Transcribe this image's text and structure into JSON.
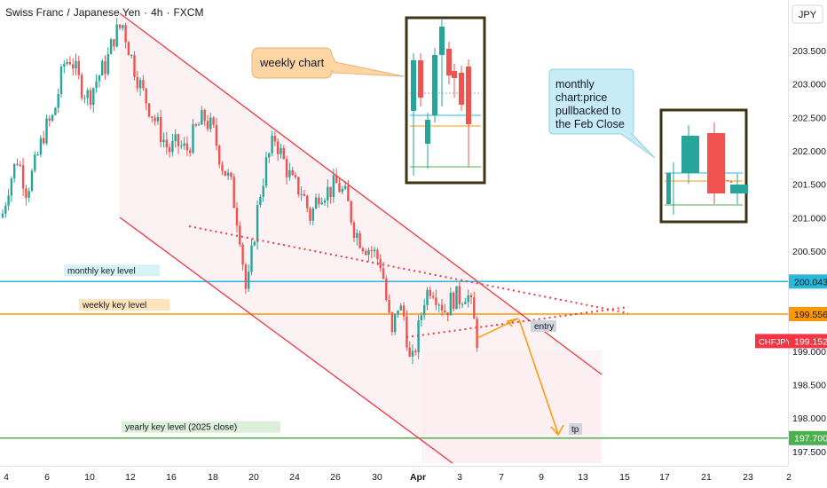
{
  "header": {
    "base": "Swiss Franc",
    "quote": "Japanese Yen",
    "interval": "4h",
    "exchange": "FXCM",
    "separator1": "/",
    "separator2": "·",
    "separator3": "·"
  },
  "currency_label": "JPY",
  "annotations": {
    "weekly_chart_label": "weekly chart",
    "monthly_chart_label": "monthly\nchart:price\npullbacked to\nthe Feb Close",
    "monthly_key_level_label": "monthly key level",
    "weekly_key_level_label": "weekly key level",
    "yearly_key_level_label": "yearly key level (2025 close)",
    "entry_label": "entry",
    "tp_label": "tp"
  },
  "price_tags": {
    "monthly_level": "200.043",
    "weekly_level": "199.556",
    "current_symbol": "CHFJPY",
    "current_price": "199.152",
    "yearly_level": "197.700"
  },
  "colors": {
    "bull": "#26a69a",
    "bear": "#ef5350",
    "channel": "#f23645",
    "monthly_line": "#2ab7d8",
    "weekly_line": "#ff9800",
    "yearly_line": "#4caf50",
    "arrow": "#ff9800",
    "inset_frame": "#3d3416",
    "callout_fill": "#ffd5a3",
    "callout2_fill": "#c8ecf6"
  },
  "chart_data": {
    "type": "candlestick",
    "title": "Swiss Franc / Japanese Yen · 4h · FXCM",
    "yaxis_ticks": [
      203.5,
      203.0,
      202.5,
      202.0,
      201.5,
      201.0,
      200.5,
      200.0,
      199.5,
      199.0,
      198.5,
      198.0,
      197.5
    ],
    "ylim": [
      197.35,
      204.2
    ],
    "xaxis_ticks": [
      "4",
      "6",
      "10",
      "12",
      "16",
      "18",
      "20",
      "24",
      "26",
      "30",
      "Apr",
      "3",
      "7",
      "9",
      "13",
      "15",
      "17",
      "21",
      "23",
      "2"
    ],
    "key_levels": [
      {
        "name": "monthly key level",
        "value": 200.043
      },
      {
        "name": "weekly key level",
        "value": 199.556
      },
      {
        "name": "yearly key level (2025 close)",
        "value": 197.7
      }
    ],
    "last_price": 199.152,
    "series_approx_close": [
      {
        "date": "4",
        "value": 201.2
      },
      {
        "date": "6",
        "value": 202.6
      },
      {
        "date": "10",
        "value": 203.2
      },
      {
        "date": "12",
        "value": 203.5
      },
      {
        "date": "16",
        "value": 202.0
      },
      {
        "date": "18",
        "value": 202.1
      },
      {
        "date": "20",
        "value": 200.0
      },
      {
        "date": "24",
        "value": 201.8
      },
      {
        "date": "26",
        "value": 201.4
      },
      {
        "date": "30",
        "value": 199.2
      },
      {
        "date": "Apr",
        "value": 198.6
      },
      {
        "date": "3",
        "value": 199.2
      }
    ]
  }
}
